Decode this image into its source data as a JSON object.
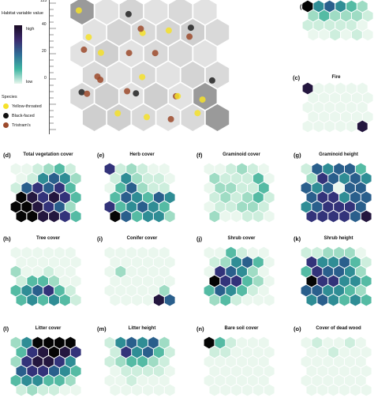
{
  "legend": {
    "title": "Habitat variable value",
    "high": "high",
    "low": "low",
    "species_title": "Species",
    "species": [
      {
        "label": "Yellow-throated",
        "color": "#f5e12a"
      },
      {
        "label": "Black-faced",
        "color": "#111111"
      },
      {
        "label": "Tristram's",
        "color": "#9c4a2c"
      }
    ]
  },
  "ruler_labels": [
    "125",
    "40",
    "20",
    "0"
  ],
  "top_letter_b": "(b)",
  "fire": {
    "letter": "(c)",
    "title": "Fire"
  },
  "panels": [
    {
      "letter": "(d)",
      "title": "Total vegetation cover"
    },
    {
      "letter": "(e)",
      "title": "Herb cover"
    },
    {
      "letter": "(f)",
      "title": "Graminoid cover"
    },
    {
      "letter": "(g)",
      "title": "Graminoid height"
    },
    {
      "letter": "(h)",
      "title": "Tree cover"
    },
    {
      "letter": "(i)",
      "title": "Conifer cover"
    },
    {
      "letter": "(j)",
      "title": "Shrub cover"
    },
    {
      "letter": "(k)",
      "title": "Shrub height"
    },
    {
      "letter": "(l)",
      "title": "Litter cover"
    },
    {
      "letter": "(m)",
      "title": "Litter height"
    },
    {
      "letter": "(n)",
      "title": "Bare soil cover"
    },
    {
      "letter": "(o)",
      "title": "Cover of dead wood"
    }
  ],
  "palette": [
    "#eaf7ee",
    "#cdeedd",
    "#9fdcc4",
    "#55bba4",
    "#2f8d95",
    "#2a5f8c",
    "#33337a",
    "#24173f",
    "#050505"
  ],
  "grids": {
    "d": [
      [
        0,
        0,
        1,
        2,
        3,
        1
      ],
      [
        0,
        1,
        4,
        5,
        4,
        2
      ],
      [
        1,
        5,
        6,
        5,
        6,
        3
      ],
      [
        8,
        7,
        6,
        7,
        6,
        3
      ],
      [
        8,
        8,
        7,
        6,
        5,
        2
      ],
      [
        8,
        8,
        7,
        7,
        6,
        3
      ]
    ],
    "e": [
      [
        6,
        1,
        2,
        1,
        0,
        0
      ],
      [
        1,
        4,
        2,
        1,
        1,
        0
      ],
      [
        0,
        3,
        5,
        2,
        1,
        1
      ],
      [
        3,
        5,
        4,
        3,
        5,
        4
      ],
      [
        6,
        3,
        4,
        5,
        4,
        3
      ],
      [
        8,
        5,
        3,
        4,
        4,
        2
      ]
    ],
    "f": [
      [
        0,
        0,
        1,
        2,
        1,
        0
      ],
      [
        2,
        1,
        1,
        1,
        3,
        0
      ],
      [
        0,
        2,
        2,
        1,
        1,
        3
      ],
      [
        1,
        2,
        1,
        2,
        3,
        1
      ],
      [
        0,
        1,
        1,
        2,
        2,
        1
      ],
      [
        2,
        0,
        0,
        1,
        1,
        0
      ]
    ],
    "g": [
      [
        1,
        5,
        4,
        5,
        5,
        3
      ],
      [
        2,
        6,
        5,
        4,
        5,
        4
      ],
      [
        5,
        4,
        5,
        0,
        5,
        5
      ],
      [
        5,
        6,
        6,
        4,
        5,
        5
      ],
      [
        4,
        5,
        6,
        6,
        6,
        5
      ],
      [
        6,
        6,
        6,
        6,
        5,
        7
      ]
    ],
    "h": [
      [
        0,
        0,
        0,
        0,
        0,
        0
      ],
      [
        0,
        0,
        0,
        0,
        0,
        0
      ],
      [
        2,
        0,
        0,
        1,
        0,
        0
      ],
      [
        1,
        3,
        3,
        2,
        0,
        0
      ],
      [
        3,
        4,
        5,
        6,
        3,
        1
      ],
      [
        3,
        4,
        3,
        4,
        3,
        1
      ]
    ],
    "i": [
      [
        0,
        0,
        0,
        0,
        0,
        0
      ],
      [
        0,
        0,
        0,
        0,
        0,
        0
      ],
      [
        0,
        2,
        0,
        0,
        0,
        0
      ],
      [
        0,
        0,
        0,
        0,
        0,
        0
      ],
      [
        0,
        0,
        0,
        0,
        0,
        2
      ],
      [
        0,
        0,
        0,
        0,
        7,
        5
      ]
    ],
    "j": [
      [
        0,
        0,
        3,
        1,
        0,
        0
      ],
      [
        1,
        2,
        4,
        5,
        3,
        0
      ],
      [
        0,
        6,
        5,
        4,
        2,
        0
      ],
      [
        8,
        6,
        6,
        3,
        2,
        0
      ],
      [
        3,
        5,
        4,
        3,
        1,
        0
      ],
      [
        2,
        3,
        1,
        0,
        0,
        0
      ]
    ],
    "k": [
      [
        1,
        1,
        2,
        2,
        2,
        0
      ],
      [
        6,
        4,
        4,
        5,
        3,
        1
      ],
      [
        3,
        6,
        5,
        5,
        4,
        2
      ],
      [
        8,
        6,
        6,
        4,
        4,
        3
      ],
      [
        5,
        5,
        4,
        4,
        3,
        2
      ],
      [
        4,
        5,
        4,
        3,
        4,
        3
      ]
    ],
    "l": [
      [
        2,
        4,
        8,
        8,
        8,
        8
      ],
      [
        3,
        6,
        7,
        8,
        7,
        6
      ],
      [
        2,
        6,
        7,
        7,
        6,
        4
      ],
      [
        5,
        6,
        6,
        5,
        4,
        3
      ],
      [
        3,
        4,
        4,
        3,
        3,
        2
      ],
      [
        1,
        2,
        1,
        1,
        0,
        0
      ]
    ],
    "m": [
      [
        1,
        4,
        5,
        4,
        5,
        2
      ],
      [
        1,
        6,
        4,
        5,
        3,
        1
      ],
      [
        1,
        2,
        3,
        3,
        2,
        1
      ],
      [
        0,
        1,
        1,
        1,
        1,
        0
      ],
      [
        0,
        0,
        1,
        0,
        0,
        0
      ],
      [
        0,
        0,
        0,
        0,
        0,
        0
      ]
    ],
    "n": [
      [
        8,
        3,
        1,
        0,
        0,
        0
      ],
      [
        1,
        1,
        0,
        0,
        0,
        0
      ],
      [
        0,
        0,
        0,
        0,
        0,
        0
      ],
      [
        0,
        0,
        0,
        0,
        0,
        0
      ],
      [
        0,
        0,
        0,
        0,
        0,
        0
      ],
      [
        0,
        0,
        0,
        0,
        0,
        0
      ]
    ],
    "o": [
      [
        0,
        1,
        0,
        0,
        1,
        0
      ],
      [
        0,
        0,
        1,
        0,
        0,
        0
      ],
      [
        0,
        0,
        0,
        0,
        0,
        0
      ],
      [
        0,
        0,
        0,
        0,
        0,
        0
      ],
      [
        0,
        0,
        0,
        0,
        0,
        0
      ],
      [
        0,
        0,
        0,
        0,
        0,
        0
      ]
    ],
    "b": [
      [
        8,
        4,
        5,
        4,
        3,
        2
      ],
      [
        2,
        3,
        2,
        2,
        2,
        1
      ],
      [
        1,
        1,
        1,
        1,
        1,
        0
      ],
      [
        0,
        0,
        1,
        0,
        1,
        0
      ]
    ],
    "c": [
      [
        7,
        0,
        0,
        0,
        0,
        0
      ],
      [
        0,
        0,
        0,
        0,
        0,
        0
      ],
      [
        0,
        0,
        0,
        0,
        0,
        0
      ],
      [
        0,
        0,
        0,
        0,
        0,
        0
      ],
      [
        0,
        0,
        0,
        0,
        0,
        7
      ]
    ]
  }
}
